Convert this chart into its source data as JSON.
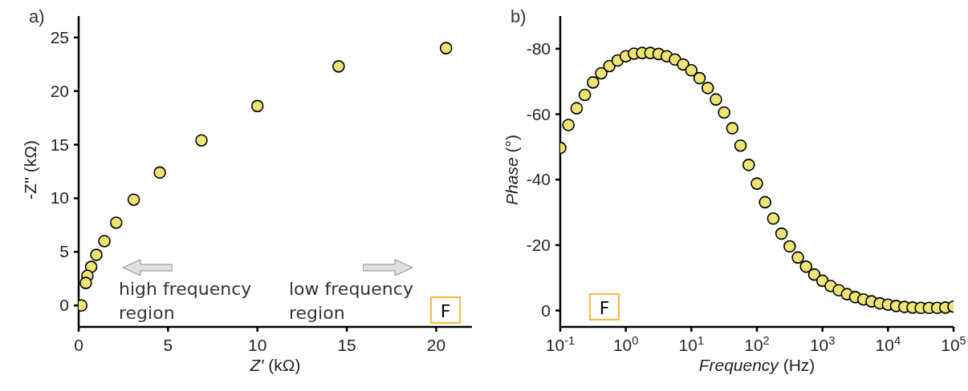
{
  "chart_data": [
    {
      "type": "scatter",
      "title": "a)",
      "xlabel": "Z′ (kΩ)",
      "ylabel": "-Z'' (kΩ)",
      "marker": "circle",
      "color": "#ede475",
      "x": [
        20.55,
        14.54,
        10.0,
        6.87,
        4.54,
        3.08,
        2.1,
        1.44,
        0.99,
        0.7,
        0.49,
        0.4,
        0.15
      ],
      "values": [
        24.0,
        22.3,
        18.6,
        15.4,
        12.4,
        9.87,
        7.72,
        6.0,
        4.72,
        3.6,
        2.77,
        2.1,
        0.0
      ],
      "xlim": [
        0,
        22
      ],
      "ylim": [
        -2,
        27
      ],
      "xticks": [
        0,
        5,
        10,
        15,
        20
      ],
      "yticks": [
        0,
        5,
        10,
        15,
        20,
        25
      ],
      "annotations": [
        "high frequency region",
        "low frequency region",
        "F"
      ]
    },
    {
      "type": "scatter",
      "title": "b)",
      "xlabel": "Frequency (Hz)",
      "ylabel": "Phase (°)",
      "marker": "circle",
      "color": "#ede475",
      "log": "x",
      "x": [
        0.1,
        0.1334,
        0.1778,
        0.2371,
        0.3162,
        0.4217,
        0.5623,
        0.7499,
        1,
        1.334,
        1.778,
        2.371,
        3.162,
        4.217,
        5.623,
        7.499,
        10,
        13.34,
        17.78,
        23.71,
        31.62,
        42.17,
        56.23,
        74.99,
        100,
        133.4,
        177.8,
        237.1,
        316.2,
        421.7,
        562.3,
        749.9,
        1000,
        1334,
        1778,
        2371,
        3162,
        4217,
        5623,
        7499,
        10000,
        13335,
        17783,
        23714,
        31623,
        42170,
        56234,
        74989,
        100000
      ],
      "values": [
        -49.7,
        -56.7,
        -61.8,
        -65.9,
        -69.7,
        -72.5,
        -74.7,
        -76.4,
        -77.7,
        -78.5,
        -78.7,
        -78.7,
        -78.4,
        -77.7,
        -76.7,
        -75.2,
        -73.4,
        -71.0,
        -68.0,
        -64.5,
        -60.5,
        -55.7,
        -50.4,
        -44.5,
        -38.8,
        -33.1,
        -28.1,
        -23.5,
        -19.6,
        -16.2,
        -13.4,
        -11.0,
        -9.1,
        -7.5,
        -6.2,
        -5.0,
        -4.1,
        -3.4,
        -2.8,
        -2.2,
        -1.8,
        -1.4,
        -1.1,
        -0.9,
        -0.8,
        -0.8,
        -0.8,
        -0.9,
        -1.2
      ],
      "xlim": [
        0.1,
        100000
      ],
      "ylim": [
        5,
        -90
      ],
      "xticks": [
        {
          "value": 0.1,
          "label": "10$^{-1}$"
        },
        {
          "value": 1,
          "label": "10$^{0}$"
        },
        {
          "value": 10,
          "label": "10$^{1}$"
        },
        {
          "value": 100,
          "label": "10$^{2}$"
        },
        {
          "value": 1000,
          "label": "10$^{3}$"
        },
        {
          "value": 10000,
          "label": "10$^{4}$"
        },
        {
          "value": 100000,
          "label": "10$^{5}$"
        }
      ],
      "yticks": [
        -80,
        -60,
        -40,
        -20,
        0
      ],
      "annotations": [
        "F"
      ]
    }
  ]
}
